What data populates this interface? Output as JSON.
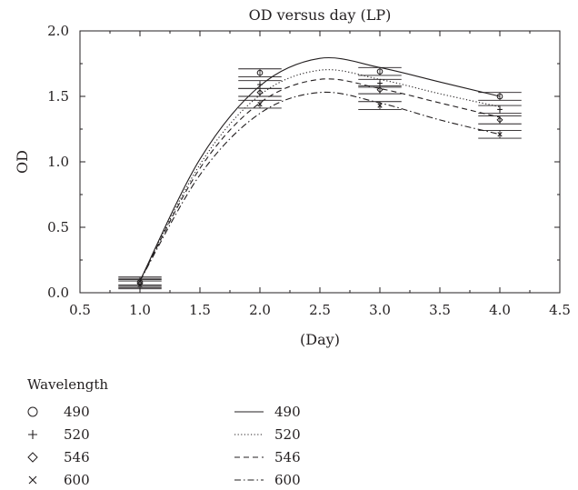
{
  "chart_data": {
    "type": "line",
    "title": "OD versus day (LP)",
    "xlabel": "(Day)",
    "ylabel": "OD",
    "xlim": [
      0.5,
      4.5
    ],
    "ylim": [
      0.0,
      2.0
    ],
    "x_ticks": [
      "0.5",
      "1.0",
      "1.5",
      "2.0",
      "2.5",
      "3.0",
      "3.5",
      "4.0",
      "4.5"
    ],
    "y_ticks": [
      "0.0",
      "0.5",
      "1.0",
      "1.5",
      "2.0"
    ],
    "x_tick_values": [
      0.5,
      1.0,
      1.5,
      2.0,
      2.5,
      3.0,
      3.5,
      4.0,
      4.5
    ],
    "y_tick_values": [
      0.0,
      0.5,
      1.0,
      1.5,
      2.0
    ],
    "grid": false,
    "legend_title": "Wavelength",
    "legend_position": "bottom-left",
    "x": [
      1.0,
      2.0,
      3.0,
      4.0
    ],
    "series": [
      {
        "name": "490",
        "marker": "circle",
        "line_style": "solid",
        "observed": [
          0.08,
          1.68,
          1.69,
          1.5
        ],
        "fit_x": [
          1.0,
          1.5,
          2.0,
          2.5,
          3.0,
          3.5,
          4.0
        ],
        "fit_y": [
          0.09,
          1.02,
          1.58,
          1.79,
          1.72,
          1.61,
          1.5
        ],
        "error": 0.03
      },
      {
        "name": "520",
        "marker": "plus",
        "line_style": "dotted",
        "observed": [
          0.09,
          1.59,
          1.6,
          1.4
        ],
        "fit_x": [
          1.0,
          1.5,
          2.0,
          2.5,
          3.0,
          3.5,
          4.0
        ],
        "fit_y": [
          0.09,
          0.98,
          1.51,
          1.7,
          1.63,
          1.52,
          1.42
        ],
        "error": 0.03
      },
      {
        "name": "546",
        "marker": "diamond",
        "line_style": "dashed",
        "observed": [
          0.07,
          1.53,
          1.55,
          1.32
        ],
        "fit_x": [
          1.0,
          1.5,
          2.0,
          2.5,
          3.0,
          3.5,
          4.0
        ],
        "fit_y": [
          0.09,
          0.95,
          1.45,
          1.63,
          1.56,
          1.45,
          1.34
        ],
        "error": 0.03
      },
      {
        "name": "600",
        "marker": "cross",
        "line_style": "dash-dot",
        "observed": [
          0.06,
          1.44,
          1.43,
          1.21
        ],
        "fit_x": [
          1.0,
          1.5,
          2.0,
          2.5,
          3.0,
          3.5,
          4.0
        ],
        "fit_y": [
          0.09,
          0.9,
          1.37,
          1.53,
          1.45,
          1.32,
          1.21
        ],
        "error": 0.03
      }
    ]
  }
}
